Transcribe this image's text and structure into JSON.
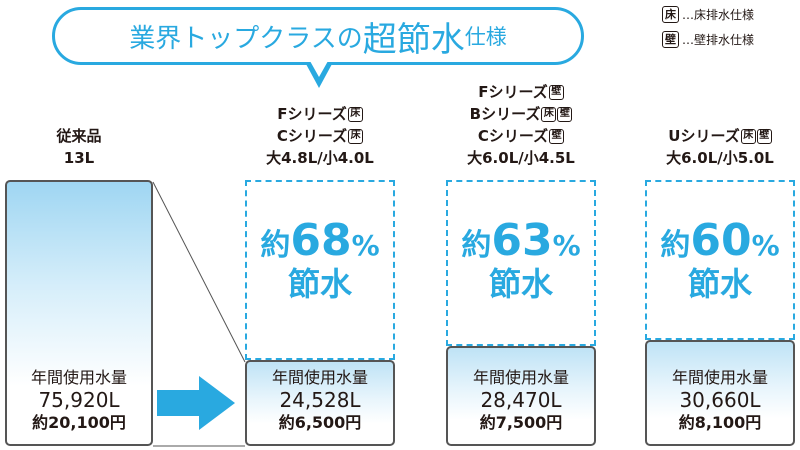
{
  "headline": {
    "part1": "業界トップクラスの",
    "part2": "超節水",
    "part3": "仕様",
    "accent_color": "#29a9e0"
  },
  "legend": [
    {
      "badge": "床",
      "text": "…床排水仕様"
    },
    {
      "badge": "壁",
      "text": "…壁排水仕様"
    }
  ],
  "columns": [
    {
      "head_lines": [
        {
          "text": "従来品",
          "badges": []
        },
        {
          "text": "13L",
          "badges": []
        }
      ],
      "annual_label": "年間使用水量",
      "annual_volume": "75,920L",
      "annual_cost": "約20,100円"
    },
    {
      "head_lines": [
        {
          "text": "Fシリーズ",
          "badges": [
            "床"
          ]
        },
        {
          "text": "Cシリーズ",
          "badges": [
            "床"
          ]
        },
        {
          "text": "大4.8L/小4.0L",
          "badges": []
        }
      ],
      "pct_prefix": "約",
      "pct_value": "68",
      "pct_unit": "%",
      "pct_suffix": "節水",
      "annual_label": "年間使用水量",
      "annual_volume": "24,528L",
      "annual_cost": "約6,500円"
    },
    {
      "head_lines": [
        {
          "text": "Fシリーズ",
          "badges": [
            "壁"
          ]
        },
        {
          "text": "Bシリーズ",
          "badges": [
            "床",
            "壁"
          ]
        },
        {
          "text": "Cシリーズ",
          "badges": [
            "壁"
          ]
        },
        {
          "text": "大6.0L/小4.5L",
          "badges": []
        }
      ],
      "pct_prefix": "約",
      "pct_value": "63",
      "pct_unit": "%",
      "pct_suffix": "節水",
      "annual_label": "年間使用水量",
      "annual_volume": "28,470L",
      "annual_cost": "約7,500円"
    },
    {
      "head_lines": [
        {
          "text": "Uシリーズ",
          "badges": [
            "床",
            "壁"
          ]
        },
        {
          "text": "大6.0L/小5.0L",
          "badges": []
        }
      ],
      "pct_prefix": "約",
      "pct_value": "60",
      "pct_unit": "%",
      "pct_suffix": "節水",
      "annual_label": "年間使用水量",
      "annual_volume": "30,660L",
      "annual_cost": "約8,100円"
    }
  ],
  "chart_data": {
    "type": "bar",
    "categories": [
      "従来品",
      "Fシリーズ/Cシリーズ(床)",
      "Fシリーズ(壁)/Bシリーズ/Cシリーズ(壁)",
      "Uシリーズ"
    ],
    "values": [
      75920,
      24528,
      28470,
      30660
    ],
    "unit": "L",
    "savings_percent": [
      null,
      68,
      63,
      60
    ],
    "annual_cost_yen": [
      20100,
      6500,
      7500,
      8100
    ]
  }
}
